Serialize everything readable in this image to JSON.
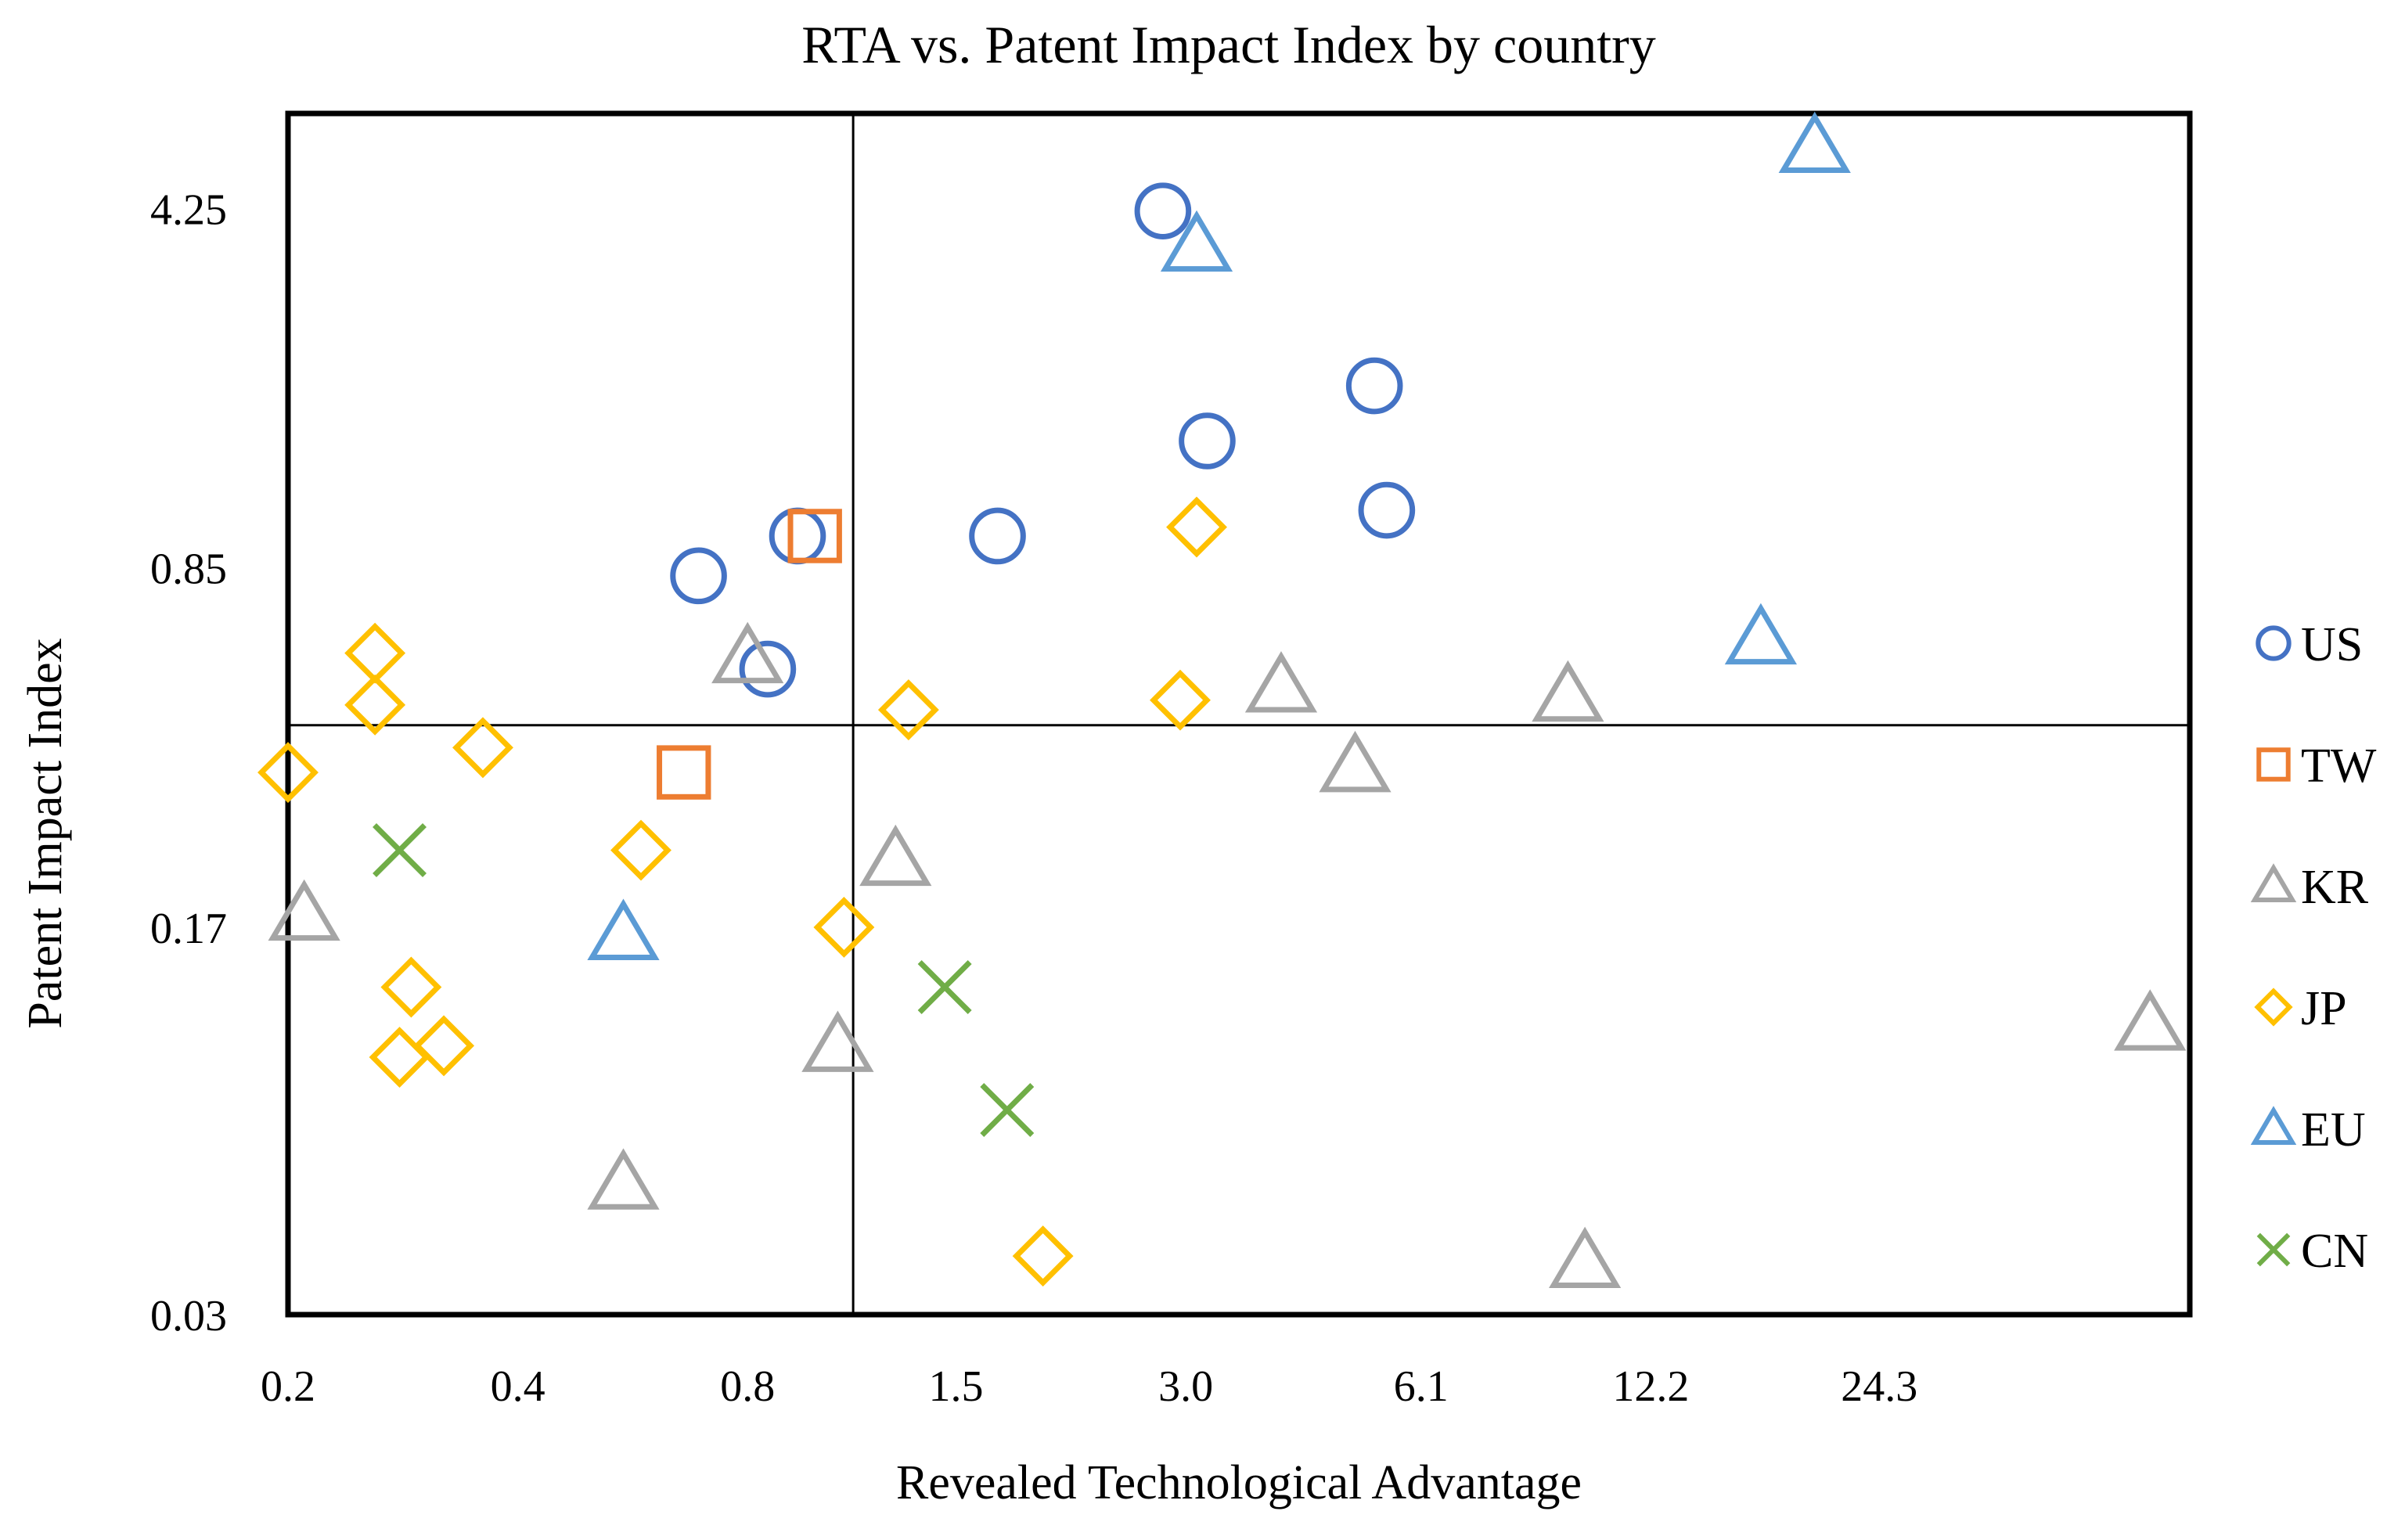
{
  "chart_data": {
    "type": "scatter",
    "title": "RTA vs. Patent Impact Index by country",
    "xlabel": "Revealed Technological Advantage",
    "ylabel": "Patent Impact Index",
    "xscale": "log",
    "yscale": "log",
    "xlim": [
      0.2,
      62
    ],
    "ylim": [
      0.03,
      6.5
    ],
    "xticks": [
      0.2,
      0.4,
      0.8,
      1.5,
      3.0,
      6.1,
      12.2,
      24.3
    ],
    "xtick_labels": [
      "0.2",
      "0.4",
      "0.8",
      "1.5",
      "3.0",
      "6.1",
      "12.2",
      "24.3"
    ],
    "yticks": [
      0.03,
      0.17,
      0.85,
      4.25
    ],
    "ytick_labels": [
      "0.03",
      "0.17",
      "0.85",
      "4.25"
    ],
    "reference_lines": {
      "x": 1.1,
      "y": 0.42
    },
    "grid": false,
    "legend_position": "right",
    "series": [
      {
        "name": "US",
        "marker": "circle",
        "color": "#4472C4",
        "points": [
          [
            2.8,
            4.2
          ],
          [
            5.3,
            1.92
          ],
          [
            3.2,
            1.5
          ],
          [
            5.5,
            1.1
          ],
          [
            1.7,
            0.98
          ],
          [
            0.93,
            0.98
          ],
          [
            0.69,
            0.82
          ],
          [
            0.85,
            0.54
          ]
        ]
      },
      {
        "name": "TW",
        "marker": "square",
        "color": "#ED7D31",
        "points": [
          [
            0.98,
            0.98
          ],
          [
            0.66,
            0.34
          ]
        ]
      },
      {
        "name": "KR",
        "marker": "triangle",
        "color": "#A5A5A5",
        "points": [
          [
            0.21,
            0.18
          ],
          [
            0.8,
            0.57
          ],
          [
            0.55,
            0.054
          ],
          [
            1.05,
            0.1
          ],
          [
            1.25,
            0.23
          ],
          [
            4.0,
            0.5
          ],
          [
            5.0,
            0.35
          ],
          [
            9.5,
            0.48
          ],
          [
            10.0,
            0.038
          ],
          [
            55.0,
            0.11
          ]
        ]
      },
      {
        "name": "JP",
        "marker": "diamond",
        "color": "#FFC000",
        "points": [
          [
            0.2,
            0.34
          ],
          [
            0.26,
            0.58
          ],
          [
            0.26,
            0.46
          ],
          [
            0.36,
            0.38
          ],
          [
            0.29,
            0.13
          ],
          [
            0.28,
            0.095
          ],
          [
            0.32,
            0.1
          ],
          [
            0.58,
            0.24
          ],
          [
            1.07,
            0.17
          ],
          [
            1.3,
            0.45
          ],
          [
            2.95,
            0.47
          ],
          [
            3.1,
            1.02
          ],
          [
            1.95,
            0.039
          ]
        ]
      },
      {
        "name": "EU",
        "marker": "triangle",
        "color": "#5B9BD5",
        "points": [
          [
            3.1,
            3.6
          ],
          [
            20.0,
            5.6
          ],
          [
            17.0,
            0.62
          ],
          [
            0.55,
            0.165
          ]
        ]
      },
      {
        "name": "CN",
        "marker": "x",
        "color": "#70AD47",
        "points": [
          [
            0.28,
            0.24
          ],
          [
            1.45,
            0.13
          ],
          [
            1.75,
            0.075
          ]
        ]
      }
    ]
  }
}
